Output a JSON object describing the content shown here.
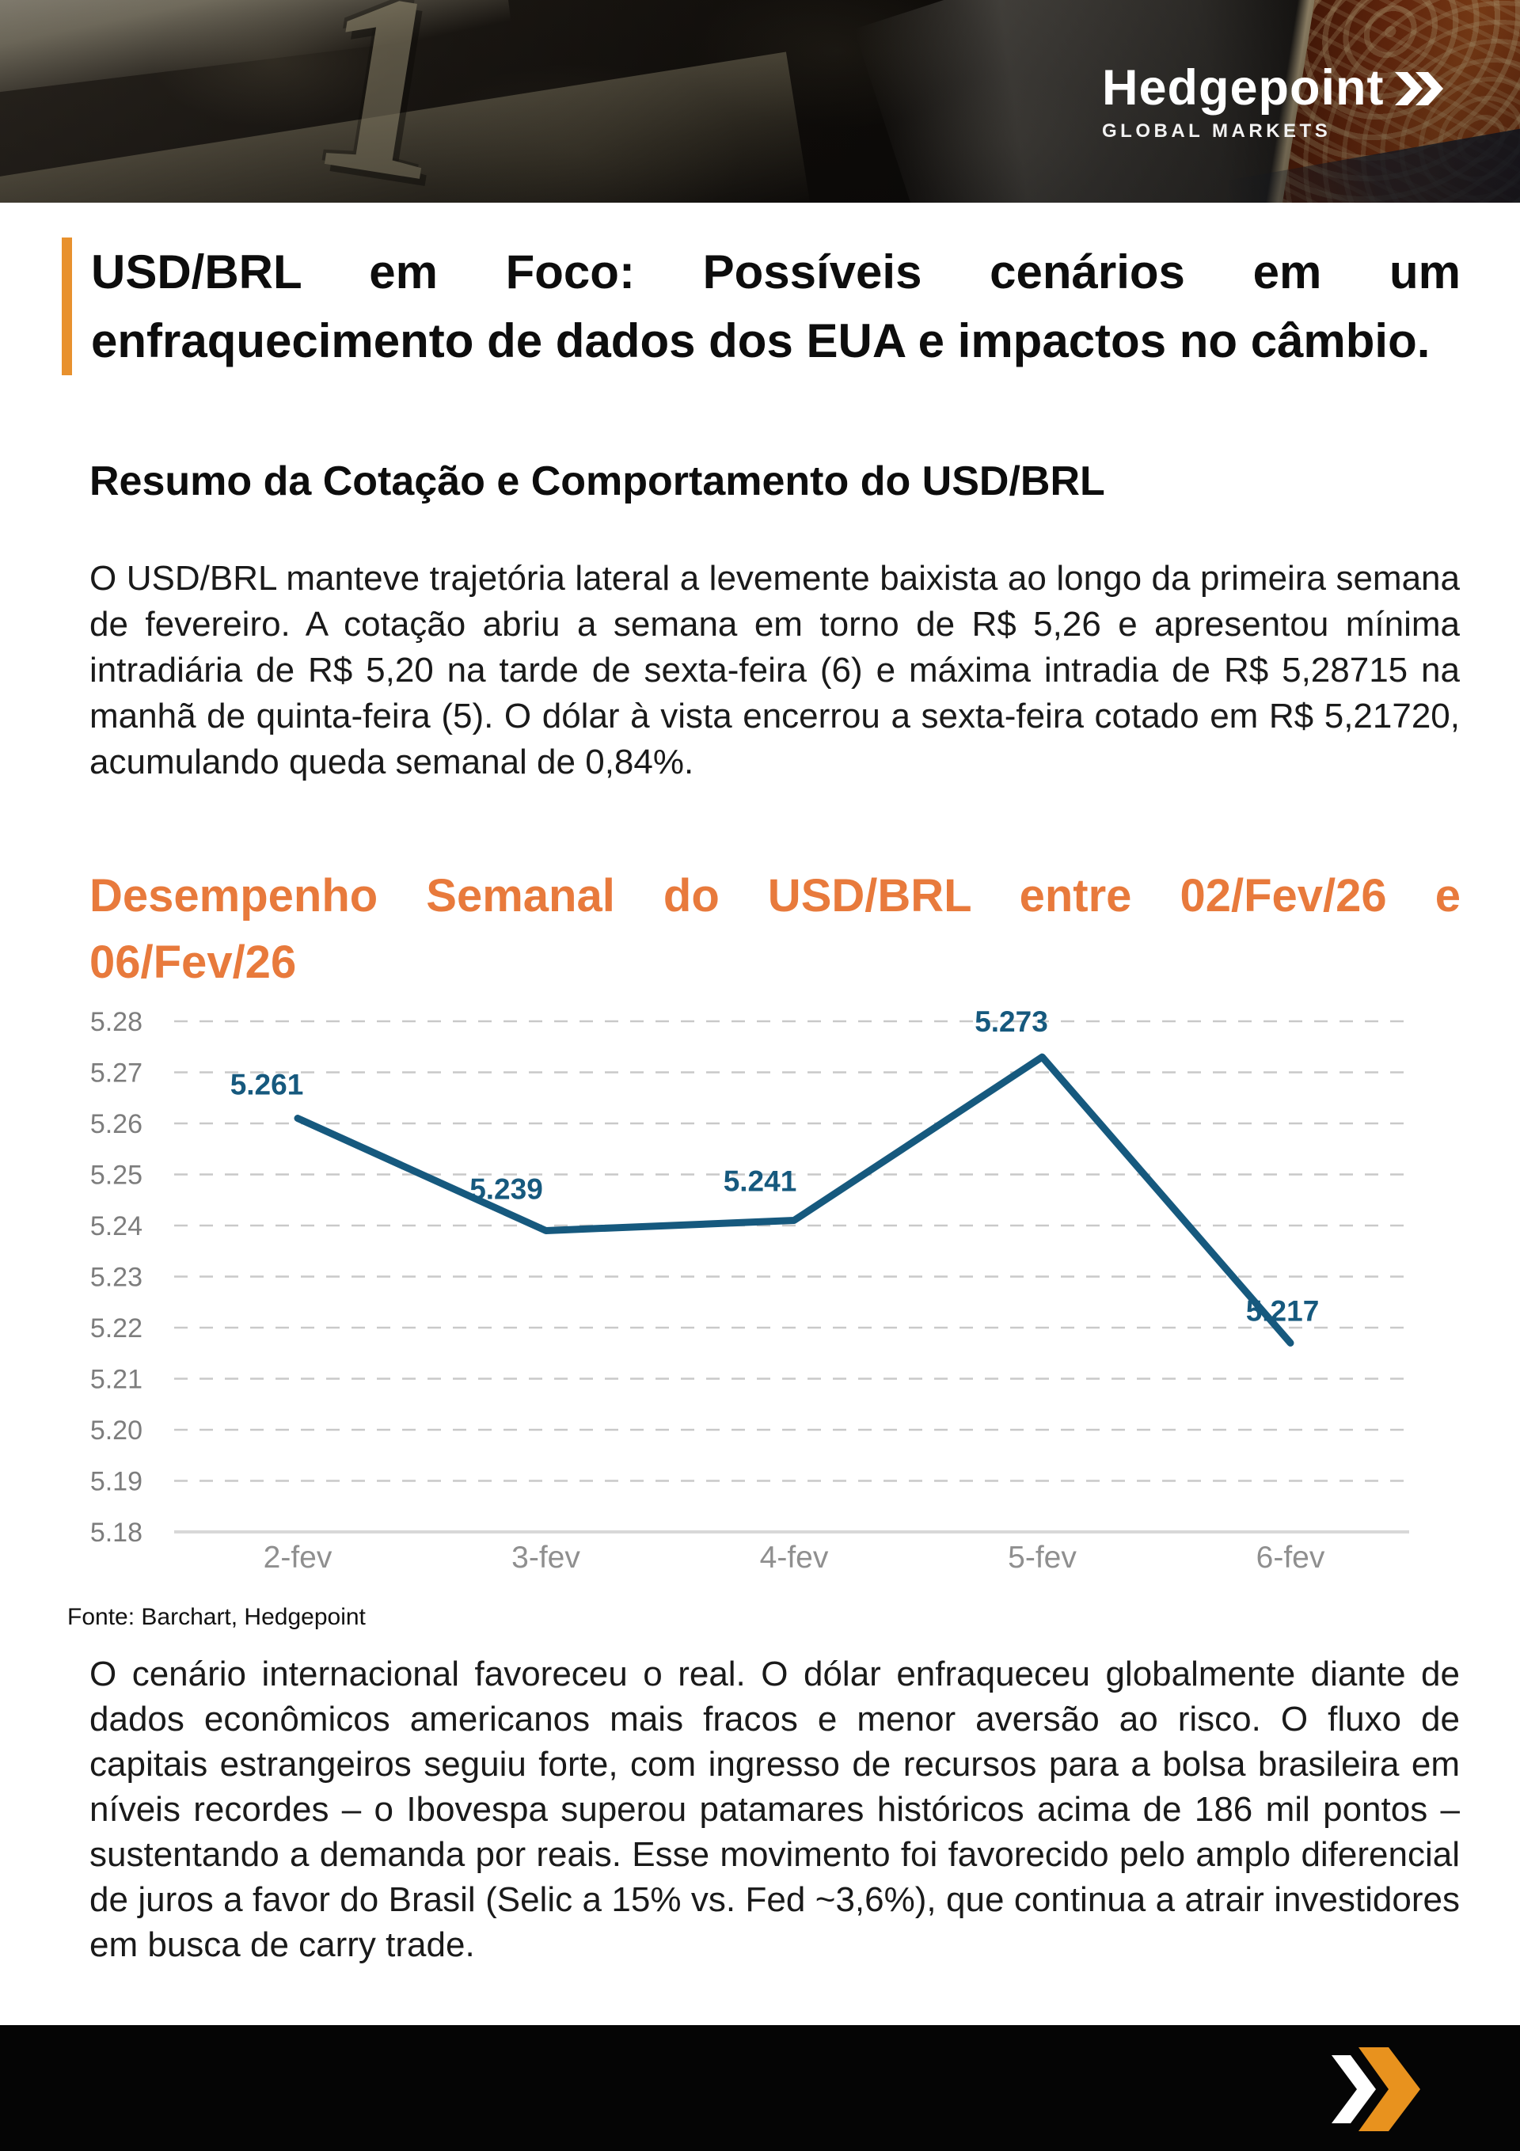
{
  "header": {
    "brand_name": "Hedgepoint",
    "brand_tagline": "GLOBAL MARKETS",
    "photo_numeral": "1"
  },
  "article": {
    "title": "USD/BRL em Foco: Possíveis cenários em um enfraquecimento de dados dos EUA e impactos no câmbio.",
    "section_heading": "Resumo da Cotação e Comportamento do USD/BRL",
    "paragraph_1": "O USD/BRL manteve trajetória lateral a levemente baixista ao longo da primeira semana de fevereiro. A cotação abriu a semana em torno de R$ 5,26 e apresentou mínima intradiária de R$ 5,20 na tarde de sexta-feira (6) e máxima intradia de R$ 5,28715 na manhã de quinta-feira (5). O dólar à vista encerrou a sexta-feira cotado em R$ 5,21720, acumulando queda semanal de 0,84%.",
    "chart_heading": "Desempenho Semanal do USD/BRL entre 02/Fev/26 e 06/Fev/26",
    "chart_source": "Fonte: Barchart, Hedgepoint",
    "paragraph_2": "O cenário internacional favoreceu o real. O dólar enfraqueceu globalmente diante de dados econômicos americanos mais fracos e menor aversão ao risco. O fluxo de capitais estrangeiros seguiu forte, com ingresso de recursos para a bolsa brasileira em níveis recordes – o Ibovespa superou patamares históricos acima de 186 mil pontos – sustentando a demanda por reais. Esse movimento foi favorecido pelo amplo diferencial de juros a favor do Brasil (Selic a 15% vs. Fed ~3,6%), que continua a atrair investidores em busca de carry trade."
  },
  "chart_data": {
    "type": "line",
    "title": "Desempenho Semanal do USD/BRL entre 02/Fev/26 e 06/Fev/26",
    "categories": [
      "2-fev",
      "3-fev",
      "4-fev",
      "5-fev",
      "6-fev"
    ],
    "values": [
      5.261,
      5.239,
      5.241,
      5.273,
      5.217
    ],
    "data_labels": [
      "5.261",
      "5.239",
      "5.241",
      "5.273",
      "5.217"
    ],
    "y_ticks": [
      "5.28",
      "5.27",
      "5.26",
      "5.25",
      "5.24",
      "5.23",
      "5.22",
      "5.21",
      "5.20",
      "5.19",
      "5.18"
    ],
    "ylim": [
      5.18,
      5.28
    ],
    "xlabel": "",
    "ylabel": "",
    "grid": "horizontal-dashed",
    "legend": "none",
    "line_color": "#16597E",
    "label_color": "#16597E",
    "tick_color": "#7d7d7d",
    "source": "Fonte: Barchart, Hedgepoint"
  },
  "colors": {
    "accent_orange": "#E87A3C",
    "title_bar_orange": "#E8912E",
    "footer_chevron_orange": "#E8921E",
    "chart_line_blue": "#16597E",
    "footer_black": "#050505"
  }
}
